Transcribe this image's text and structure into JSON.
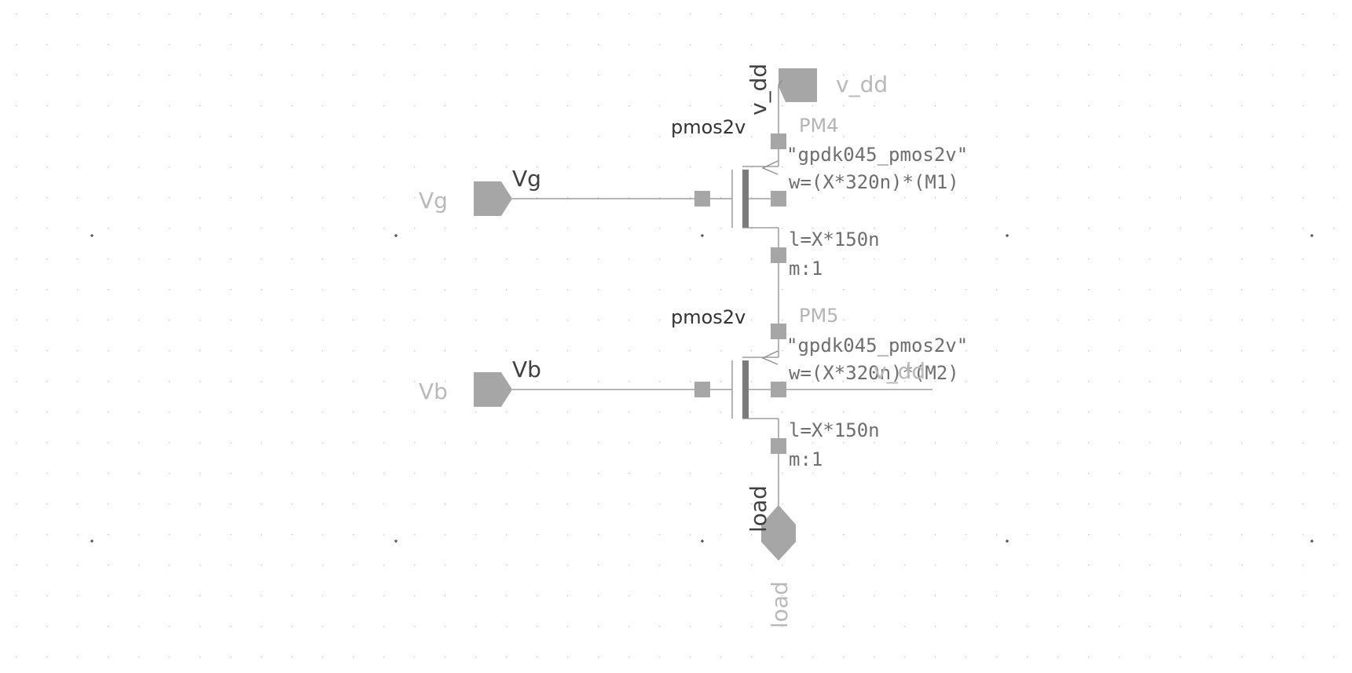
{
  "schematic": {
    "supply_net_label": "v_dd",
    "supply_pin_label": "v_dd",
    "transistors": [
      {
        "instance": "PM4",
        "cell": "pmos2v",
        "model": "\"gpdk045_pmos2v\"",
        "width": "w=(X*320n)*(M1)",
        "length": "l=X*150n",
        "multiplier": "m:1"
      },
      {
        "instance": "PM5",
        "cell": "pmos2v",
        "model": "\"gpdk045_pmos2v\"",
        "width": "w=(X*320n)*(M2)",
        "length": "l=X*150n",
        "multiplier": "m:1"
      }
    ],
    "body_net_label": "v_dd",
    "inputs": [
      {
        "pin_label": "Vg",
        "net_label": "Vg"
      },
      {
        "pin_label": "Vb",
        "net_label": "Vb"
      }
    ],
    "output": {
      "net_label": "load",
      "pin_label": "load"
    }
  },
  "colors": {
    "wire": "#8c8c8c",
    "pin": "#a6a6a6",
    "channel": "#7a7a7a",
    "dark_text": "#333333",
    "light_text": "#b4b4b4"
  }
}
